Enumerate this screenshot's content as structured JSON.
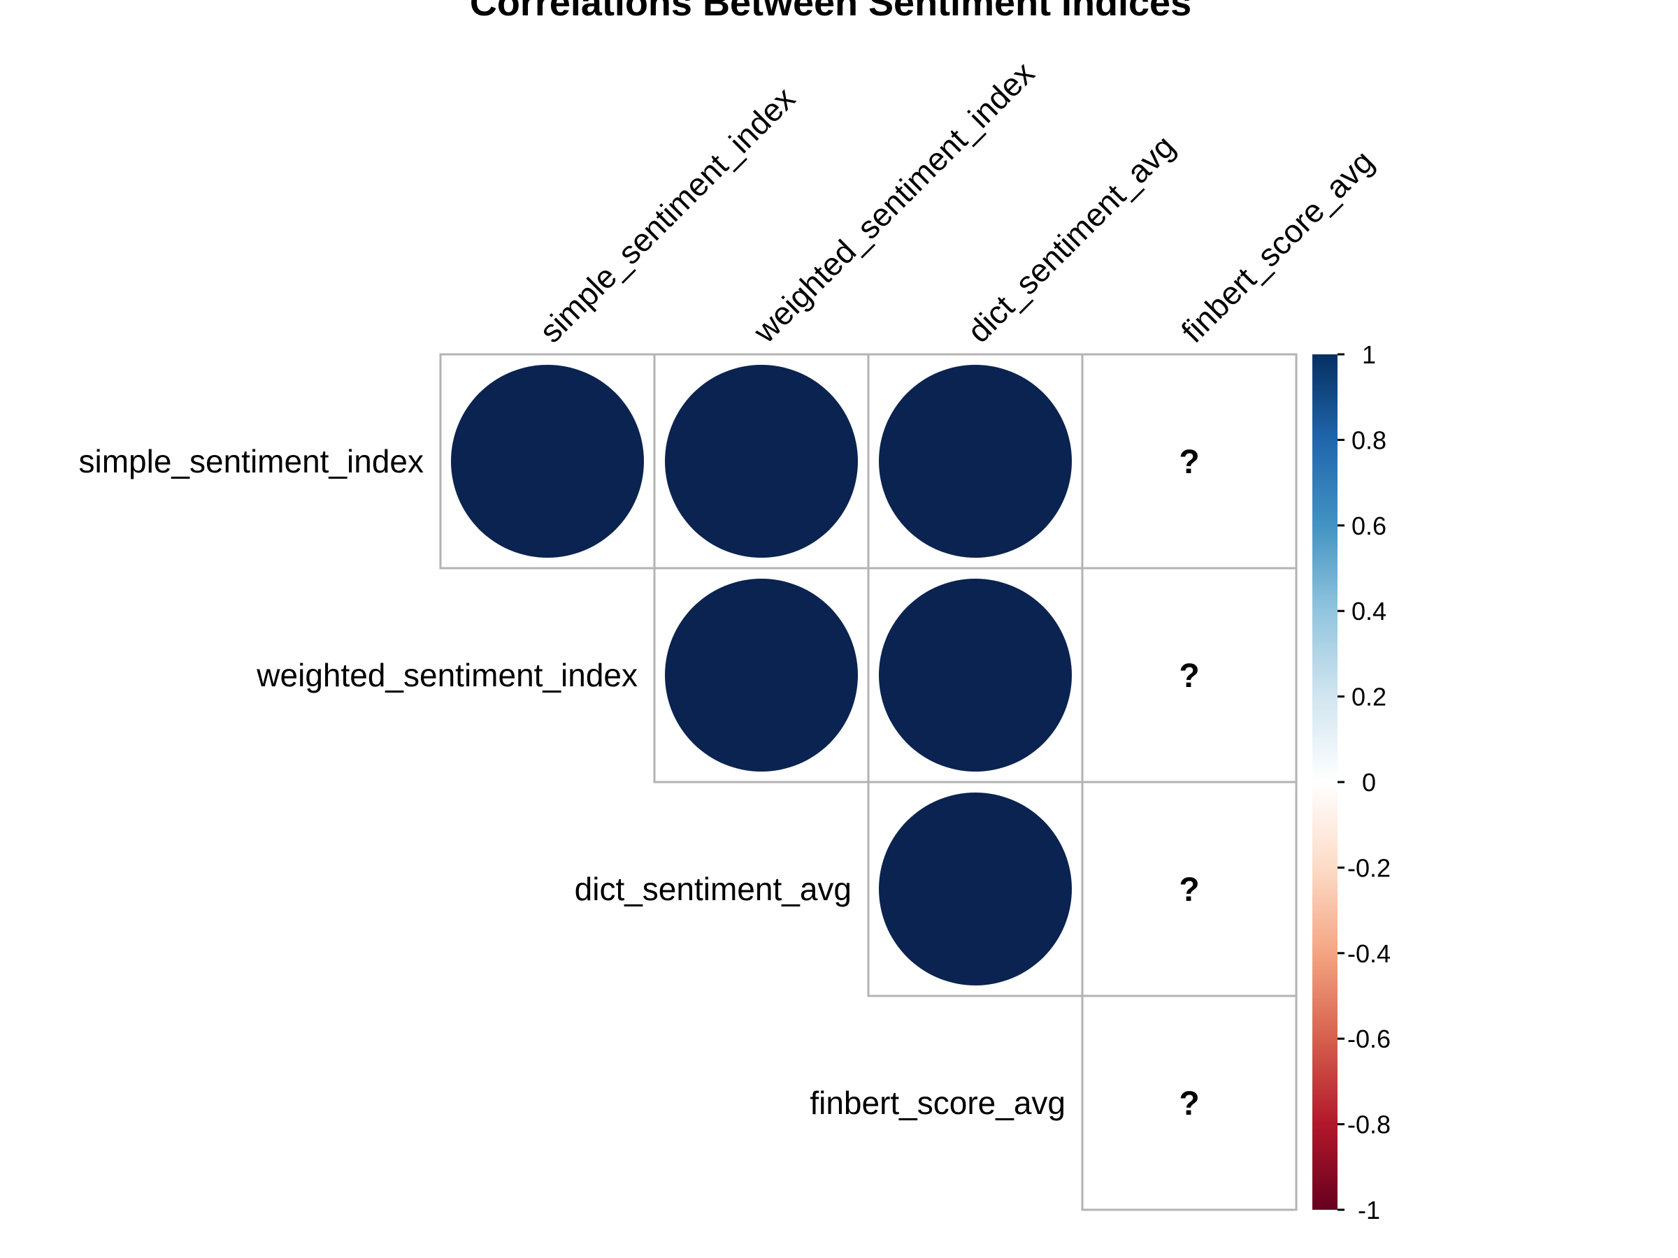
{
  "chart_data": {
    "type": "heatmap",
    "title": "Correlations Between Sentiment Indices",
    "variables": [
      "simple_sentiment_index",
      "weighted_sentiment_index",
      "dict_sentiment_avg",
      "finbert_score_avg"
    ],
    "layout": "upper-triangle",
    "shape": "circle",
    "missing_label": "?",
    "matrix": [
      [
        1,
        1,
        1,
        null
      ],
      [
        null,
        1,
        1,
        null
      ],
      [
        null,
        null,
        1,
        null
      ],
      [
        null,
        null,
        null,
        null
      ]
    ],
    "colorbar": {
      "range": [
        -1,
        1
      ],
      "ticks": [
        "1",
        "0.8",
        "0.6",
        "0.4",
        "0.2",
        "0",
        "-0.2",
        "-0.4",
        "-0.6",
        "-0.8",
        "-1"
      ],
      "colors": [
        "#67001F",
        "#B2182B",
        "#D6604D",
        "#F4A582",
        "#FDDBC7",
        "#FFFFFF",
        "#D1E5F0",
        "#92C5DE",
        "#4393C3",
        "#2166AC",
        "#053061"
      ]
    },
    "circle_color": "#0B2350",
    "grid_color": "#B3B3B3"
  }
}
